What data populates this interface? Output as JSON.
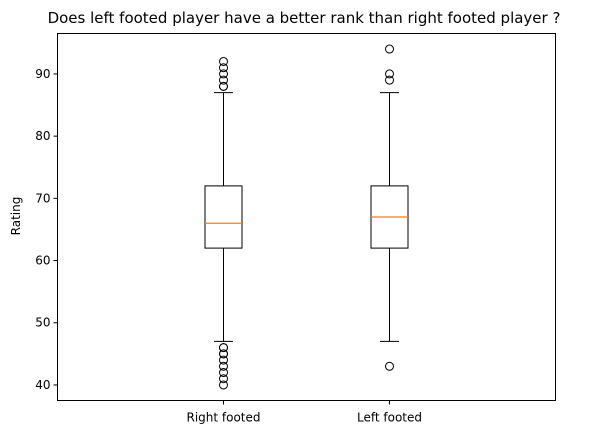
{
  "chart_data": {
    "type": "boxplot",
    "title": "Does left footed player have a better rank than right footed player ?",
    "xlabel": "",
    "ylabel": "Rating",
    "categories": [
      "Right footed",
      "Left footed"
    ],
    "ylim": [
      37.5,
      96.5
    ],
    "yticks": [
      40,
      50,
      60,
      70,
      80,
      90
    ],
    "grid": false,
    "legend": "none",
    "colors": {
      "box": "#000000",
      "median": "#ff7f0e",
      "outlier": "#000000"
    },
    "boxes": [
      {
        "category": "Right footed",
        "whisker_low": 47,
        "q1": 62,
        "median": 66,
        "q3": 72,
        "whisker_high": 87,
        "outliers": [
          88,
          88,
          89,
          90,
          91,
          92,
          46,
          46,
          45,
          45,
          44,
          43,
          42,
          41,
          40
        ]
      },
      {
        "category": "Left footed",
        "whisker_low": 47,
        "q1": 62,
        "median": 67,
        "q3": 72,
        "whisker_high": 87,
        "outliers": [
          89,
          90,
          94,
          43
        ]
      }
    ]
  }
}
